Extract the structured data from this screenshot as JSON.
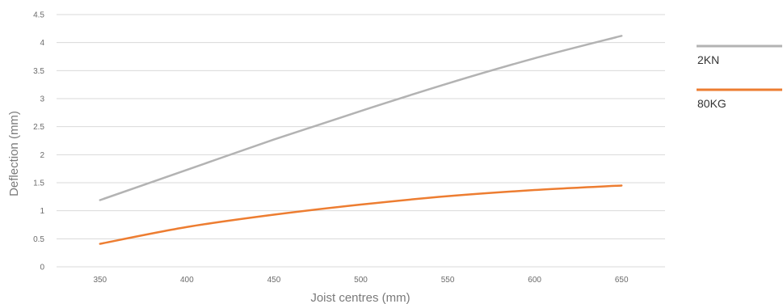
{
  "chart_data": {
    "type": "line",
    "xlabel": "Joist centres (mm)",
    "ylabel": "Deflection (mm)",
    "xlim": [
      325,
      675
    ],
    "ylim": [
      0,
      4.5
    ],
    "x_ticks": [
      350,
      400,
      450,
      500,
      550,
      600,
      650
    ],
    "y_ticks": [
      0,
      0.5,
      1,
      1.5,
      2,
      2.5,
      3,
      3.5,
      4,
      4.5
    ],
    "grid": "horizontal",
    "legend_position": "right",
    "series": [
      {
        "name": "2KN",
        "color": "#b3b3b3",
        "x": [
          350,
          400,
          450,
          500,
          550,
          600,
          650
        ],
        "values": [
          1.19,
          1.73,
          2.27,
          2.78,
          3.27,
          3.72,
          4.12
        ]
      },
      {
        "name": "80KG",
        "color": "#ed7d31",
        "x": [
          350,
          400,
          450,
          500,
          550,
          600,
          650
        ],
        "values": [
          0.41,
          0.71,
          0.93,
          1.11,
          1.26,
          1.37,
          1.45
        ]
      }
    ]
  }
}
